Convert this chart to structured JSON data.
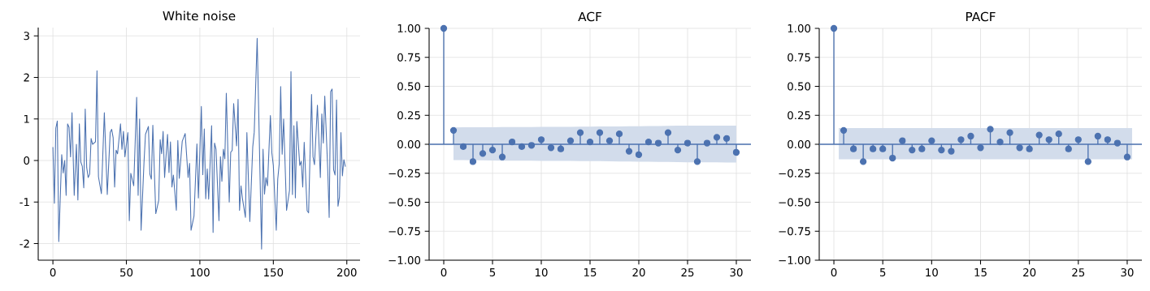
{
  "chart_data": [
    {
      "type": "line",
      "title": "White noise",
      "color": "#4c72b0",
      "grid": true,
      "xlim": [
        -10,
        209
      ],
      "ylim": [
        -2.4,
        3.2
      ],
      "xticks": [
        0,
        50,
        100,
        150,
        200
      ],
      "yticks": [
        -2,
        -1,
        0,
        1,
        2,
        3
      ],
      "x": [
        0,
        1,
        2,
        3,
        4,
        6,
        7,
        8,
        9,
        10,
        11,
        12,
        13,
        14.5,
        16,
        17,
        18,
        19,
        20,
        21,
        22,
        23,
        24,
        25,
        26,
        27,
        29,
        30,
        31,
        33,
        35,
        37,
        39,
        40,
        41,
        42,
        43,
        44,
        46,
        47,
        48,
        49,
        51,
        52,
        53,
        55,
        57,
        58,
        59,
        60,
        62,
        63,
        65,
        66,
        67,
        68,
        70,
        72,
        73,
        74,
        75,
        76,
        78,
        79,
        80,
        81,
        82,
        84,
        85,
        86,
        88,
        90,
        92,
        93,
        94,
        96,
        98,
        99,
        101,
        102,
        103,
        104,
        105,
        106,
        108,
        109,
        110,
        111,
        113,
        114,
        115,
        116,
        117,
        118,
        120,
        121,
        122,
        123,
        125,
        126,
        127,
        128,
        129,
        131,
        132,
        134,
        136,
        137,
        139,
        142,
        143,
        144,
        145,
        146,
        148,
        149,
        150,
        152,
        153,
        154,
        155,
        156,
        157,
        159,
        161,
        162,
        163,
        164,
        165,
        166,
        168,
        169,
        170,
        171,
        173,
        174,
        176,
        177,
        178,
        180,
        182,
        183,
        184,
        185,
        187,
        188,
        189,
        190,
        191,
        192,
        193,
        194,
        195,
        196,
        197,
        198,
        199
      ],
      "values": [
        0.32,
        -1.03,
        0.78,
        0.95,
        -1.95,
        0.14,
        -0.3,
        0.0,
        -0.84,
        0.88,
        0.8,
        0.09,
        1.15,
        -0.84,
        0.39,
        -0.95,
        0.88,
        -0.04,
        -0.14,
        -0.66,
        1.24,
        -0.17,
        -0.41,
        -0.33,
        0.53,
        0.39,
        0.45,
        2.16,
        -0.39,
        -0.8,
        1.15,
        -0.82,
        0.68,
        0.75,
        0.55,
        -0.64,
        0.25,
        0.16,
        0.88,
        0.27,
        0.7,
        0.09,
        0.67,
        -1.45,
        -0.31,
        -0.61,
        1.52,
        -0.84,
        1.0,
        -1.68,
        -0.04,
        0.63,
        0.82,
        -0.33,
        -0.45,
        0.85,
        -1.28,
        -0.96,
        0.5,
        0.16,
        0.7,
        -0.41,
        0.63,
        -0.29,
        0.45,
        -0.64,
        -0.35,
        -1.2,
        0.48,
        -0.43,
        0.46,
        0.65,
        -0.41,
        -0.07,
        -1.68,
        -1.34,
        0.4,
        -0.9,
        1.3,
        -0.34,
        0.76,
        -0.92,
        -0.2,
        -0.93,
        0.84,
        -1.73,
        0.42,
        0.27,
        -1.45,
        0.09,
        -0.5,
        0.27,
        0.04,
        1.62,
        -1.0,
        0.2,
        0.24,
        1.37,
        0.35,
        1.47,
        -1.2,
        -0.61,
        -0.92,
        -1.37,
        0.67,
        -1.47,
        0.33,
        0.68,
        2.94,
        -2.13,
        0.27,
        -0.81,
        -0.41,
        -0.61,
        1.08,
        0.18,
        -0.12,
        -1.68,
        -0.45,
        -0.08,
        1.78,
        0.15,
        1.0,
        -1.2,
        -0.72,
        2.14,
        -0.82,
        0.84,
        -0.9,
        0.94,
        -0.12,
        -0.02,
        -0.64,
        0.44,
        -1.21,
        -1.26,
        1.59,
        0.09,
        -0.1,
        1.33,
        -0.41,
        1.12,
        0.42,
        1.55,
        -0.2,
        -1.37,
        1.66,
        1.72,
        -0.22,
        -0.35,
        1.46,
        -1.1,
        -0.88,
        0.67,
        -0.37,
        0.02,
        -0.15
      ]
    },
    {
      "type": "lollipop",
      "title": "ACF",
      "grid": true,
      "marker": "circle",
      "xlim": [
        -1.5,
        31.5
      ],
      "ylim": [
        -1,
        1
      ],
      "xticks": [
        0,
        5,
        10,
        15,
        20,
        25,
        30
      ],
      "yticks": [
        {
          "value": -1,
          "label": "−1.00"
        },
        {
          "value": -0.75,
          "label": "−0.75"
        },
        {
          "value": -0.5,
          "label": "−0.50"
        },
        {
          "value": -0.25,
          "label": "−0.25"
        },
        {
          "value": 0,
          "label": "0.00"
        },
        {
          "value": 0.25,
          "label": "0.25"
        },
        {
          "value": 0.5,
          "label": "0.50"
        },
        {
          "value": 0.75,
          "label": "0.75"
        },
        {
          "value": 1,
          "label": "1.00"
        }
      ],
      "x": [
        0,
        1,
        2,
        3,
        4,
        5,
        6,
        7,
        8,
        9,
        10,
        11,
        12,
        13,
        14,
        15,
        16,
        17,
        18,
        19,
        20,
        21,
        22,
        23,
        24,
        25,
        26,
        27,
        28,
        29,
        30
      ],
      "series": [
        {
          "color": "#4c72b0",
          "values": [
            1.0,
            0.12,
            -0.02,
            -0.15,
            -0.08,
            -0.05,
            -0.11,
            0.02,
            -0.02,
            -0.01,
            0.04,
            -0.03,
            -0.04,
            0.03,
            0.1,
            0.02,
            0.1,
            0.03,
            0.09,
            -0.06,
            -0.09,
            0.02,
            0.01,
            0.1,
            -0.05,
            0.01,
            -0.15,
            0.01,
            0.06,
            0.05,
            -0.07
          ],
          "lower": [
            null,
            -0.136,
            -0.137,
            -0.138,
            -0.139,
            -0.14,
            -0.141,
            -0.141,
            -0.142,
            -0.142,
            -0.143,
            -0.143,
            -0.144,
            -0.144,
            -0.145,
            -0.145,
            -0.146,
            -0.147,
            -0.148,
            -0.149,
            -0.15,
            -0.151,
            -0.152,
            -0.153,
            -0.154,
            -0.155,
            -0.155,
            -0.156,
            -0.156,
            -0.157,
            -0.157
          ],
          "upper": [
            null,
            0.145,
            0.146,
            0.146,
            0.147,
            0.147,
            0.148,
            0.148,
            0.149,
            0.149,
            0.15,
            0.15,
            0.151,
            0.151,
            0.152,
            0.152,
            0.153,
            0.153,
            0.154,
            0.155,
            0.156,
            0.157,
            0.158,
            0.159,
            0.16,
            0.16,
            0.161,
            0.16,
            0.161,
            0.16,
            0.161
          ]
        }
      ],
      "ref_lines": [
        {
          "axis": "y",
          "value": 0,
          "color": "#4c72b0"
        }
      ]
    },
    {
      "type": "lollipop",
      "title": "PACF",
      "grid": true,
      "marker": "circle",
      "xlim": [
        -1.5,
        31.5
      ],
      "ylim": [
        -1,
        1
      ],
      "xticks": [
        0,
        5,
        10,
        15,
        20,
        25,
        30
      ],
      "yticks": [
        {
          "value": -1,
          "label": "−1.00"
        },
        {
          "value": -0.75,
          "label": "−0.75"
        },
        {
          "value": -0.5,
          "label": "−0.50"
        },
        {
          "value": -0.25,
          "label": "−0.25"
        },
        {
          "value": 0,
          "label": "0.00"
        },
        {
          "value": 0.25,
          "label": "0.25"
        },
        {
          "value": 0.5,
          "label": "0.50"
        },
        {
          "value": 0.75,
          "label": "0.75"
        },
        {
          "value": 1,
          "label": "1.00"
        }
      ],
      "x": [
        0,
        1,
        2,
        3,
        4,
        5,
        6,
        7,
        8,
        9,
        10,
        11,
        12,
        13,
        14,
        15,
        16,
        17,
        18,
        19,
        20,
        21,
        22,
        23,
        24,
        25,
        26,
        27,
        28,
        29,
        30
      ],
      "series": [
        {
          "color": "#4c72b0",
          "values": [
            1.0,
            0.12,
            -0.04,
            -0.15,
            -0.04,
            -0.04,
            -0.12,
            0.03,
            -0.05,
            -0.04,
            0.03,
            -0.05,
            -0.06,
            0.04,
            0.07,
            -0.03,
            0.13,
            0.02,
            0.1,
            -0.03,
            -0.04,
            0.08,
            0.04,
            0.09,
            -0.04,
            0.04,
            -0.15,
            0.07,
            0.04,
            0.01,
            -0.11
          ]
        }
      ],
      "bands": [
        {
          "axis": "y",
          "from": -0.13,
          "to": 0.14,
          "color": "#d2dceb"
        }
      ],
      "ref_lines": [
        {
          "axis": "y",
          "value": 0,
          "color": "#4c72b0"
        }
      ]
    }
  ]
}
